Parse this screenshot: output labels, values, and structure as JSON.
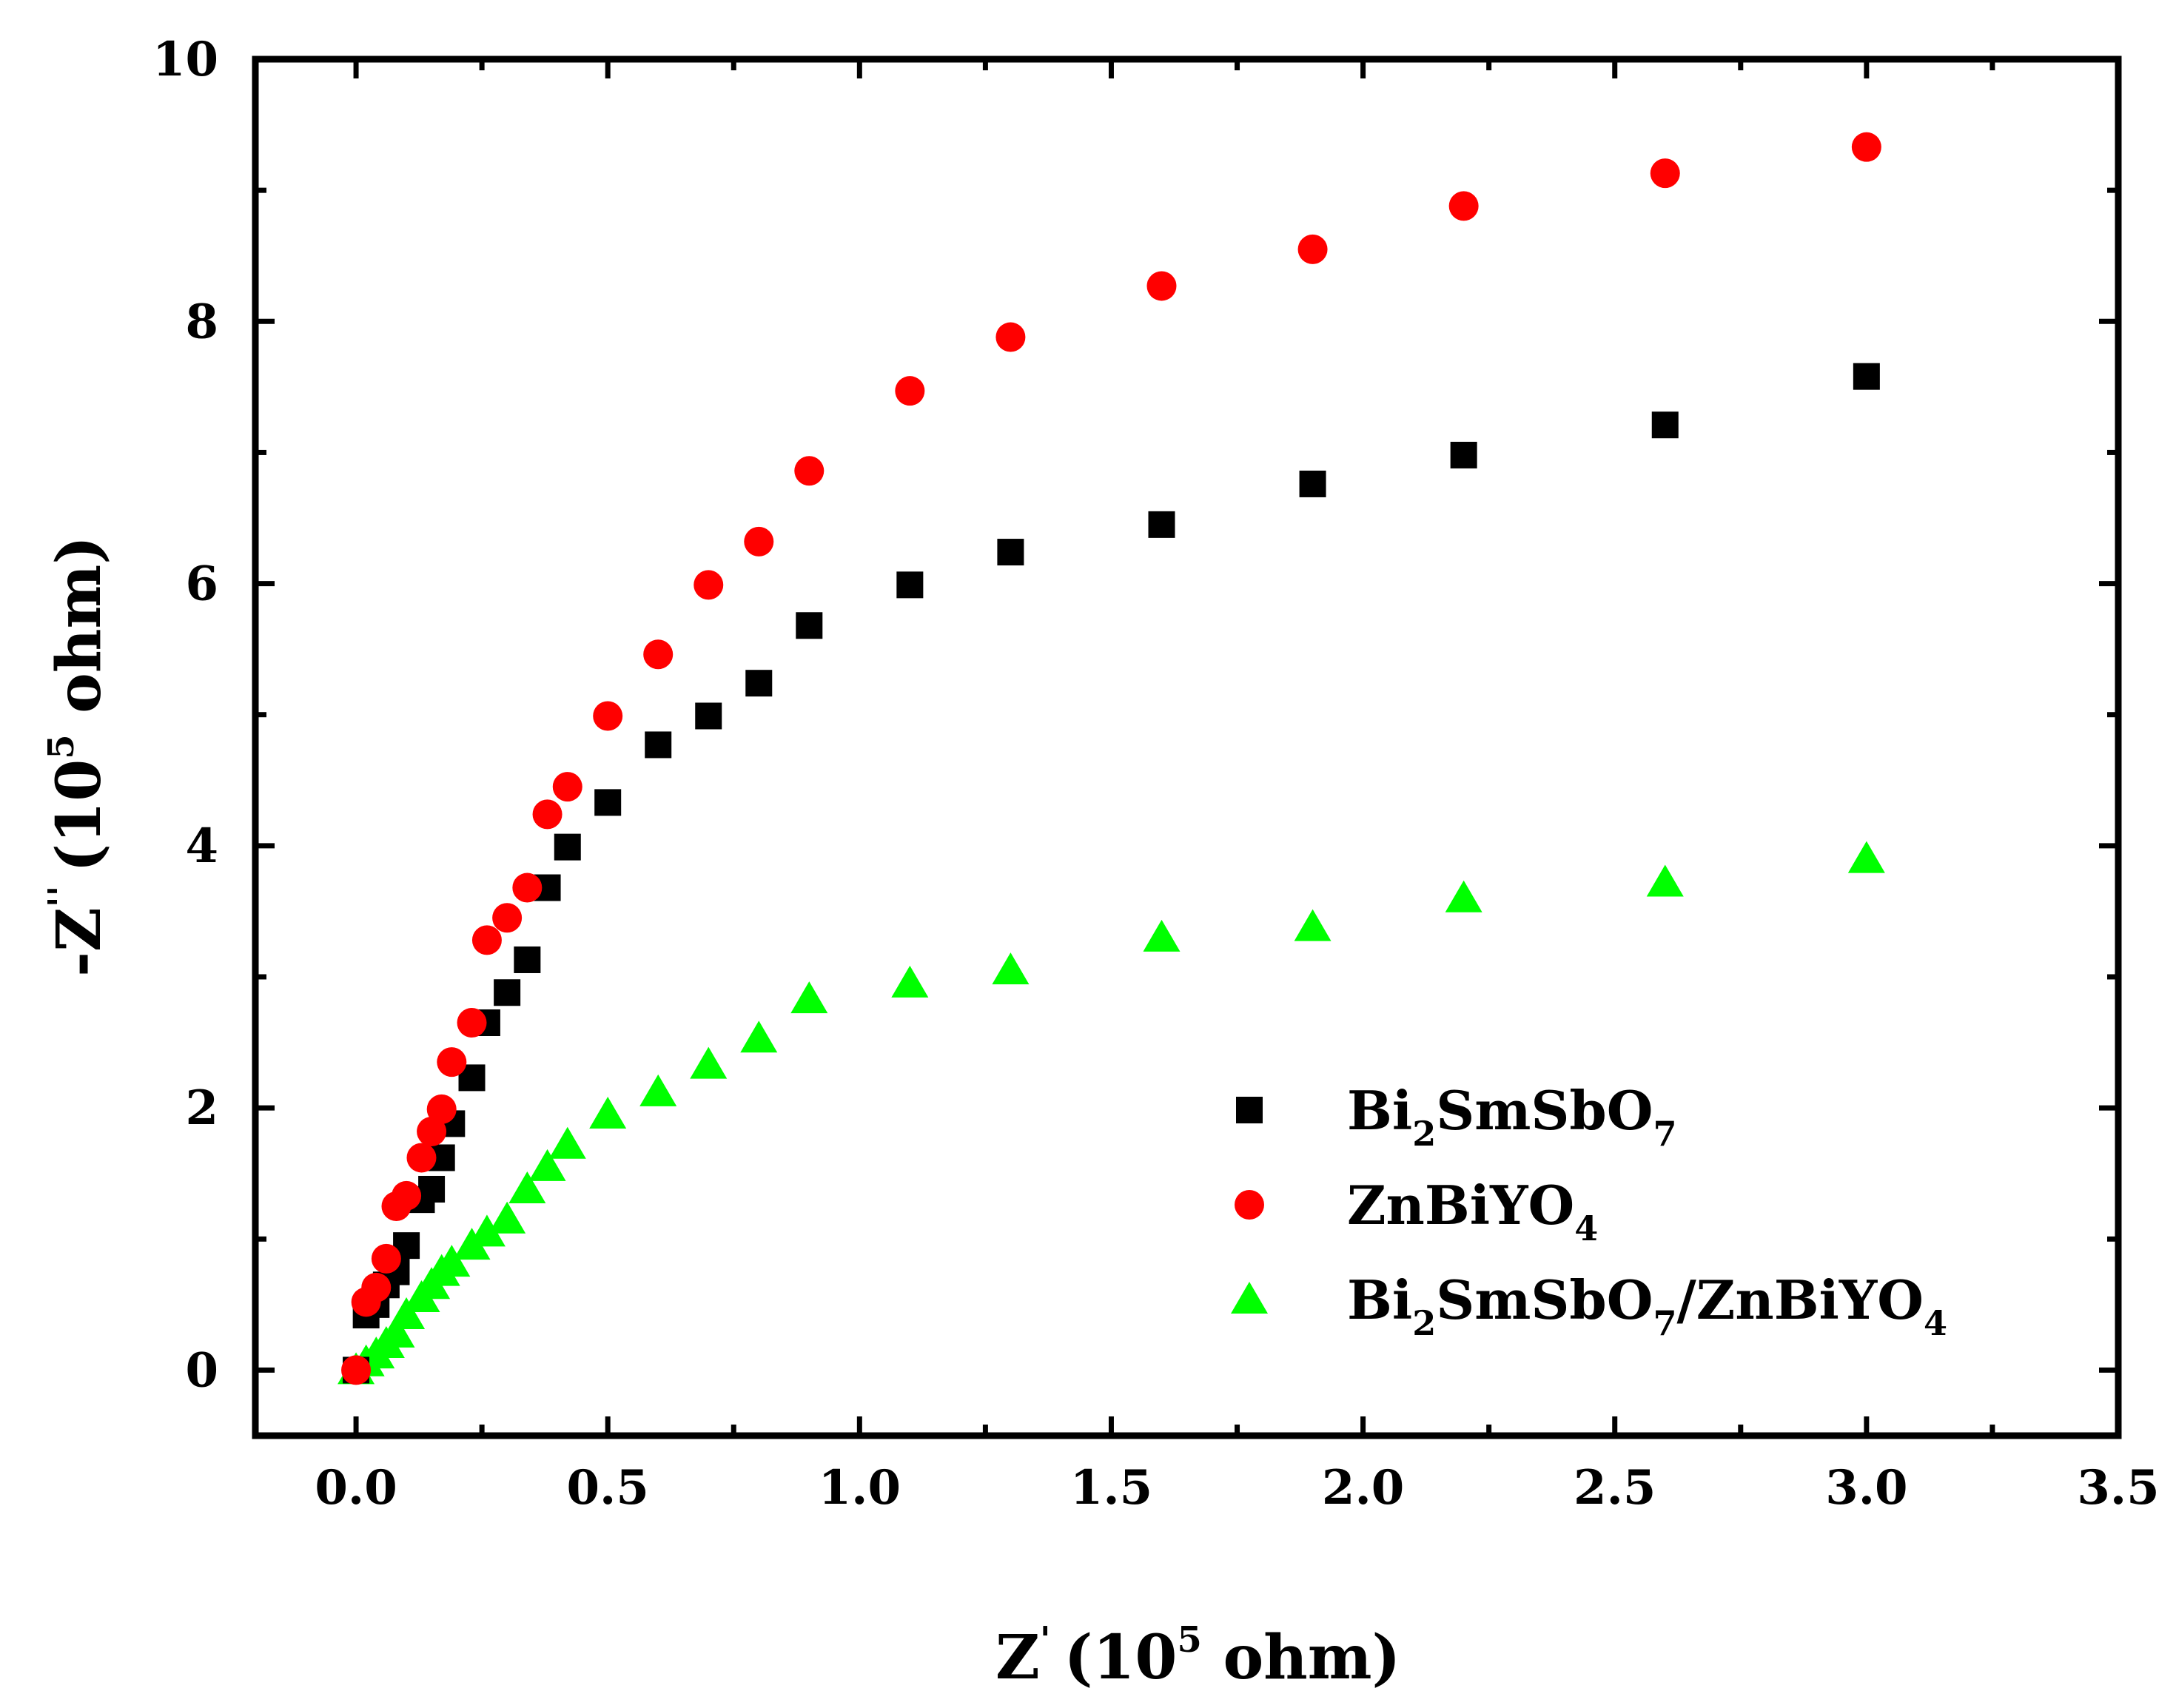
{
  "chart_data": {
    "type": "scatter",
    "title": "",
    "xlabel": {
      "main": "Z",
      "prime": "'",
      "unit_open": "(10",
      "exponent": "5",
      "unit_close": " ohm)"
    },
    "ylabel": {
      "main": "-Z",
      "prime": "''",
      "unit_open": "(10",
      "exponent": "5",
      "unit_close": " ohm)"
    },
    "xlim": [
      -0.2,
      3.5
    ],
    "ylim": [
      -0.5,
      10
    ],
    "x_ticks": [
      0.0,
      0.5,
      1.0,
      1.5,
      2.0,
      2.5,
      3.0,
      3.5
    ],
    "x_tick_labels": [
      "0.0",
      "0.5",
      "1.0",
      "1.5",
      "2.0",
      "2.5",
      "3.0",
      "3.5"
    ],
    "y_ticks": [
      0,
      2,
      4,
      6,
      8,
      10
    ],
    "y_tick_labels": [
      "0",
      "2",
      "4",
      "6",
      "8",
      "10"
    ],
    "grid": false,
    "legend_position": "right",
    "series": [
      {
        "name": "Bi2SmSbO7",
        "label_parts": [
          {
            "t": "Bi"
          },
          {
            "t": "2",
            "sub": true
          },
          {
            "t": "SmSbO"
          },
          {
            "t": "7",
            "sub": true
          }
        ],
        "marker": "square",
        "color": "#000000",
        "x": [
          0.0,
          0.02,
          0.04,
          0.06,
          0.08,
          0.1,
          0.13,
          0.15,
          0.17,
          0.19,
          0.23,
          0.26,
          0.3,
          0.34,
          0.38,
          0.42,
          0.5,
          0.6,
          0.7,
          0.8,
          0.9,
          1.1,
          1.3,
          1.6,
          1.9,
          2.2,
          2.6,
          3.0
        ],
        "y": [
          0.0,
          0.42,
          0.5,
          0.65,
          0.75,
          0.95,
          1.3,
          1.38,
          1.62,
          1.88,
          2.23,
          2.65,
          2.88,
          3.13,
          3.68,
          3.99,
          4.33,
          4.77,
          4.99,
          5.24,
          5.68,
          5.99,
          6.24,
          6.45,
          6.76,
          6.98,
          7.21,
          7.58
        ]
      },
      {
        "name": "ZnBiYO4",
        "label_parts": [
          {
            "t": "ZnBiYO"
          },
          {
            "t": "4",
            "sub": true
          }
        ],
        "marker": "circle",
        "color": "#ff0000",
        "x": [
          0.0,
          0.02,
          0.04,
          0.06,
          0.08,
          0.1,
          0.13,
          0.15,
          0.17,
          0.19,
          0.23,
          0.26,
          0.3,
          0.34,
          0.38,
          0.42,
          0.5,
          0.6,
          0.7,
          0.8,
          0.9,
          1.1,
          1.3,
          1.6,
          1.9,
          2.2,
          2.6,
          3.0
        ],
        "y": [
          0.0,
          0.52,
          0.63,
          0.85,
          1.25,
          1.33,
          1.62,
          1.82,
          1.99,
          2.35,
          2.65,
          3.28,
          3.45,
          3.68,
          4.24,
          4.45,
          4.99,
          5.46,
          5.99,
          6.32,
          6.86,
          7.47,
          7.88,
          8.27,
          8.55,
          8.88,
          9.13,
          9.33
        ]
      },
      {
        "name": "Bi2SmSbO7/ZnBiYO4",
        "label_parts": [
          {
            "t": "Bi"
          },
          {
            "t": "2",
            "sub": true
          },
          {
            "t": "SmSbO"
          },
          {
            "t": "7",
            "sub": true
          },
          {
            "t": "/ZnBiYO"
          },
          {
            "t": "4",
            "sub": true
          }
        ],
        "marker": "triangle",
        "color": "#00ff00",
        "x": [
          0.0,
          0.02,
          0.04,
          0.06,
          0.08,
          0.1,
          0.13,
          0.15,
          0.17,
          0.19,
          0.23,
          0.26,
          0.3,
          0.34,
          0.38,
          0.42,
          0.5,
          0.6,
          0.7,
          0.8,
          0.9,
          1.1,
          1.3,
          1.6,
          1.9,
          2.2,
          2.6,
          3.0
        ],
        "y": [
          0.0,
          0.06,
          0.12,
          0.2,
          0.28,
          0.42,
          0.55,
          0.65,
          0.75,
          0.82,
          0.95,
          1.05,
          1.15,
          1.38,
          1.55,
          1.72,
          1.95,
          2.12,
          2.33,
          2.53,
          2.83,
          2.95,
          3.05,
          3.3,
          3.38,
          3.6,
          3.72,
          3.9
        ]
      }
    ]
  }
}
